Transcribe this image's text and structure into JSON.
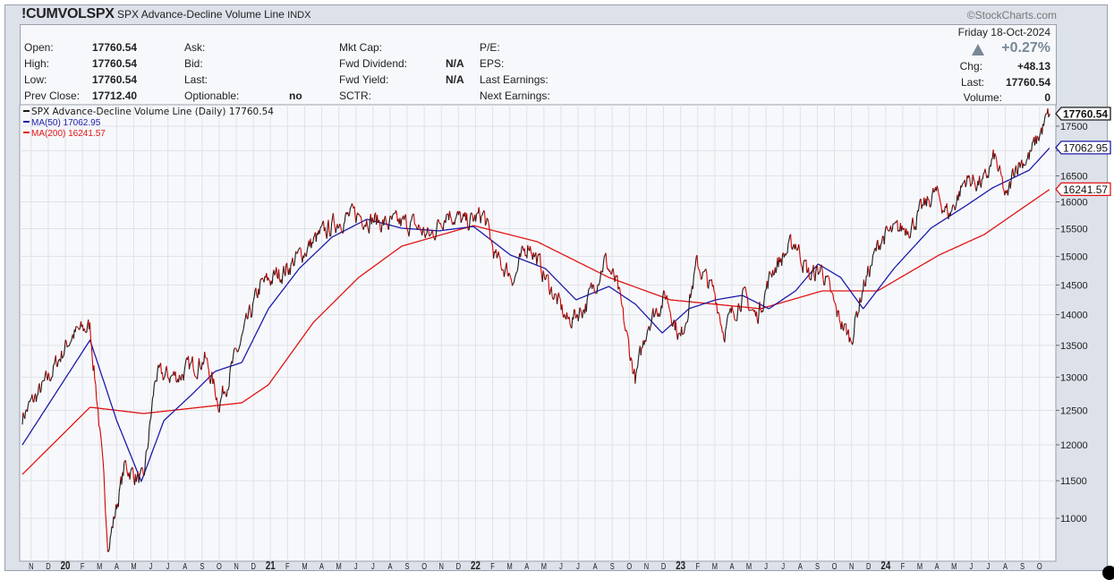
{
  "header": {
    "symbol": "!CUMVOLSPX",
    "name": "SPX Advance-Decline Volume Line",
    "exchange": "INDX",
    "brand": "©StockCharts.com",
    "date": "Friday  18-Oct-2024",
    "pct_change": "+0.27%",
    "direction_icon": "up-triangle",
    "chg_label": "Chg:",
    "chg_value": "+48.13",
    "last_label": "Last:",
    "last_value": "17760.54",
    "volume_label": "Volume:",
    "volume_value": "0"
  },
  "quote": {
    "col1": [
      {
        "label": "Open:",
        "value": "17760.54"
      },
      {
        "label": "High:",
        "value": "17760.54"
      },
      {
        "label": "Low:",
        "value": "17760.54"
      },
      {
        "label": "Prev Close:",
        "value": "17712.40"
      }
    ],
    "col2": [
      {
        "label": "Ask:",
        "value": ""
      },
      {
        "label": "Bid:",
        "value": ""
      },
      {
        "label": "Last:",
        "value": ""
      },
      {
        "label": "Optionable:",
        "value": "no"
      }
    ],
    "col3": [
      {
        "label": "Mkt Cap:",
        "value": ""
      },
      {
        "label": "Fwd Dividend:",
        "value": "N/A"
      },
      {
        "label": "Fwd Yield:",
        "value": "N/A"
      },
      {
        "label": "SCTR:",
        "value": ""
      }
    ],
    "col4": [
      {
        "label": "P/E:"
      },
      {
        "label": "EPS:"
      },
      {
        "label": "Last Earnings:"
      },
      {
        "label": "Next Earnings:"
      }
    ]
  },
  "colors": {
    "up": "#1a1a1a",
    "down": "#d40000",
    "ma50": "#1c1ca8",
    "ma200": "#e01515",
    "grid": "#dfe2e8",
    "plot_bg": "#f7f8fb"
  },
  "chart_data": {
    "type": "line",
    "title": "SPX Advance-Decline Volume Line",
    "yscale": "log",
    "ylim": [
      10400,
      17900
    ],
    "xlim": [
      2019.77,
      2024.83
    ],
    "y_ticks": [
      11000,
      11500,
      12000,
      12500,
      13000,
      13500,
      14000,
      14500,
      15000,
      15500,
      16000,
      16500,
      17000,
      17500
    ],
    "x_tick_labels": [
      "N",
      "D",
      "20",
      "F",
      "M",
      "A",
      "M",
      "J",
      "J",
      "A",
      "S",
      "O",
      "N",
      "D",
      "21",
      "F",
      "M",
      "A",
      "M",
      "J",
      "J",
      "A",
      "S",
      "O",
      "N",
      "D",
      "22",
      "F",
      "M",
      "A",
      "M",
      "J",
      "J",
      "A",
      "S",
      "O",
      "N",
      "D",
      "23",
      "F",
      "M",
      "A",
      "M",
      "J",
      "J",
      "A",
      "S",
      "O",
      "N",
      "D",
      "24",
      "F",
      "M",
      "A",
      "M",
      "J",
      "J",
      "A",
      "S",
      "O"
    ],
    "x_tick_start": 2019.833,
    "legend": [
      {
        "label": "SPX Advance-Decline Volume Line (Daily) 17760.54",
        "color": "#1a1a1a"
      },
      {
        "label": "MA(50) 17062.95",
        "color": "#1c1ca8"
      },
      {
        "label": "MA(200) 16241.57",
        "color": "#e01515"
      }
    ],
    "last_labels": [
      {
        "value": "17760.54",
        "num": 17760.54,
        "color": "#1a1a1a"
      },
      {
        "value": "17062.95",
        "num": 17062.95,
        "color": "#1c1ca8"
      },
      {
        "value": "16241.57",
        "num": 16241.57,
        "color": "#e01515"
      }
    ],
    "series": [
      {
        "name": "SPX Advance-Decline Volume Line",
        "points": [
          [
            2019.79,
            12415
          ],
          [
            2019.9,
            12884
          ],
          [
            2020.03,
            13657
          ],
          [
            2020.12,
            13803
          ],
          [
            2020.16,
            12480
          ],
          [
            2020.21,
            10646
          ],
          [
            2020.29,
            11711
          ],
          [
            2020.38,
            11465
          ],
          [
            2020.44,
            13020
          ],
          [
            2020.55,
            13020
          ],
          [
            2020.68,
            13300
          ],
          [
            2020.75,
            12612
          ],
          [
            2020.86,
            13584
          ],
          [
            2020.95,
            14476
          ],
          [
            2021.08,
            14786
          ],
          [
            2021.21,
            15264
          ],
          [
            2021.34,
            15675
          ],
          [
            2021.43,
            15757
          ],
          [
            2021.56,
            15591
          ],
          [
            2021.69,
            15591
          ],
          [
            2021.78,
            15346
          ],
          [
            2021.86,
            15841
          ],
          [
            2021.95,
            15591
          ],
          [
            2022.04,
            15757
          ],
          [
            2022.1,
            14943
          ],
          [
            2022.19,
            14630
          ],
          [
            2022.26,
            15264
          ],
          [
            2022.34,
            14630
          ],
          [
            2022.45,
            13876
          ],
          [
            2022.54,
            14172
          ],
          [
            2022.63,
            14943
          ],
          [
            2022.69,
            14476
          ],
          [
            2022.74,
            13584
          ],
          [
            2022.78,
            12952
          ],
          [
            2022.84,
            13876
          ],
          [
            2022.93,
            14324
          ],
          [
            2023.0,
            13584
          ],
          [
            2023.08,
            14865
          ],
          [
            2023.17,
            14324
          ],
          [
            2023.21,
            13729
          ],
          [
            2023.3,
            14324
          ],
          [
            2023.37,
            13949
          ],
          [
            2023.45,
            14786
          ],
          [
            2023.56,
            15264
          ],
          [
            2023.63,
            14630
          ],
          [
            2023.69,
            14786
          ],
          [
            2023.76,
            14023
          ],
          [
            2023.83,
            13584
          ],
          [
            2023.89,
            14476
          ],
          [
            2023.98,
            15346
          ],
          [
            2024.04,
            15426
          ],
          [
            2024.13,
            15591
          ],
          [
            2024.24,
            16181
          ],
          [
            2024.31,
            15757
          ],
          [
            2024.39,
            16440
          ],
          [
            2024.48,
            16352
          ],
          [
            2024.53,
            16881
          ],
          [
            2024.59,
            16009
          ],
          [
            2024.63,
            16704
          ],
          [
            2024.7,
            16881
          ],
          [
            2024.74,
            17243
          ],
          [
            2024.8,
            17760.54
          ]
        ]
      },
      {
        "name": "MA(50)",
        "points": [
          [
            2019.79,
            11999
          ],
          [
            2020.12,
            13584
          ],
          [
            2020.25,
            12349
          ],
          [
            2020.37,
            11489
          ],
          [
            2020.48,
            12349
          ],
          [
            2020.62,
            12747
          ],
          [
            2020.73,
            13090
          ],
          [
            2020.86,
            13229
          ],
          [
            2020.99,
            14098
          ],
          [
            2021.14,
            14786
          ],
          [
            2021.3,
            15346
          ],
          [
            2021.47,
            15675
          ],
          [
            2021.64,
            15509
          ],
          [
            2021.82,
            15460
          ],
          [
            2021.99,
            15540
          ],
          [
            2022.17,
            15024
          ],
          [
            2022.34,
            14786
          ],
          [
            2022.49,
            14247
          ],
          [
            2022.65,
            14476
          ],
          [
            2022.78,
            14172
          ],
          [
            2022.91,
            13699
          ],
          [
            2023.04,
            14098
          ],
          [
            2023.17,
            14247
          ],
          [
            2023.3,
            14324
          ],
          [
            2023.43,
            14098
          ],
          [
            2023.56,
            14399
          ],
          [
            2023.67,
            14865
          ],
          [
            2023.78,
            14630
          ],
          [
            2023.89,
            14098
          ],
          [
            2024.04,
            14786
          ],
          [
            2024.22,
            15509
          ],
          [
            2024.39,
            15925
          ],
          [
            2024.52,
            16266
          ],
          [
            2024.7,
            16614
          ],
          [
            2024.8,
            17062.95
          ]
        ]
      },
      {
        "name": "MA(200)",
        "points": [
          [
            2019.79,
            11587
          ],
          [
            2020.12,
            12546
          ],
          [
            2020.38,
            12453
          ],
          [
            2020.86,
            12612
          ],
          [
            2020.99,
            12884
          ],
          [
            2021.21,
            13876
          ],
          [
            2021.43,
            14630
          ],
          [
            2021.64,
            15183
          ],
          [
            2021.99,
            15557
          ],
          [
            2022.3,
            15264
          ],
          [
            2022.65,
            14630
          ],
          [
            2022.95,
            14247
          ],
          [
            2023.39,
            14098
          ],
          [
            2023.69,
            14399
          ],
          [
            2023.96,
            14399
          ],
          [
            2024.26,
            15024
          ],
          [
            2024.48,
            15393
          ],
          [
            2024.8,
            16241.57
          ]
        ]
      }
    ]
  }
}
